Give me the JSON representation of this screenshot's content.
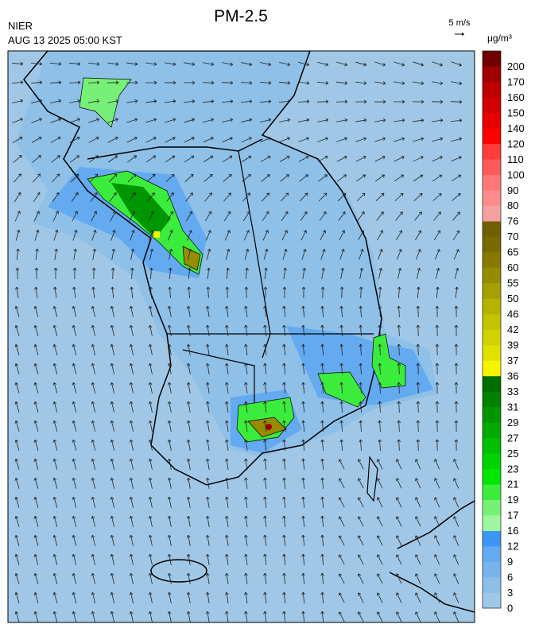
{
  "title": "PM-2.5",
  "source": "NIER",
  "timestamp": "AUG 13 2025 05:00 KST",
  "wind_scale": "5 m/s",
  "unit": "μg/m³",
  "colorbar": {
    "levels": [
      0,
      3,
      6,
      9,
      12,
      16,
      17,
      19,
      21,
      23,
      25,
      27,
      29,
      31,
      33,
      36,
      37,
      39,
      42,
      46,
      50,
      55,
      60,
      65,
      70,
      76,
      80,
      90,
      100,
      110,
      120,
      140,
      150,
      160,
      170,
      200
    ],
    "colors": [
      "#a0c8e6",
      "#8cbfe8",
      "#78b4ec",
      "#64aaf0",
      "#3c96f5",
      "#a0f5a0",
      "#78f078",
      "#3cec3c",
      "#00e600",
      "#00d200",
      "#00be00",
      "#00aa00",
      "#009600",
      "#008200",
      "#006e00",
      "#f5f500",
      "#e1e100",
      "#d2d200",
      "#c3c300",
      "#b4b400",
      "#a5a000",
      "#968c00",
      "#877800",
      "#786900",
      "#6e5f00",
      "#f5a0a0",
      "#ff8c8c",
      "#ff7878",
      "#ff5a5a",
      "#ff3c3c",
      "#ff0000",
      "#e60000",
      "#d20000",
      "#be0000",
      "#a00000",
      "#700000"
    ]
  }
}
